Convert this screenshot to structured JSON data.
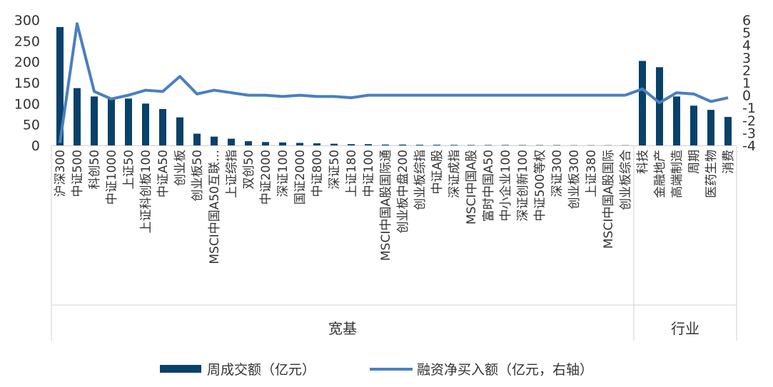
{
  "chart_data": {
    "type": "bar",
    "title": "",
    "categories": [
      "沪深300",
      "中证500",
      "科创50",
      "中证1000",
      "上证50",
      "上证科创板100",
      "中证A50",
      "创业板",
      "创业板50",
      "MSCI中国A50互联…",
      "上证综指",
      "双创50",
      "中证2000",
      "深证100",
      "国证2000",
      "中证800",
      "深证50",
      "上证180",
      "中证100",
      "MSCI中国A股国际通",
      "创业板中盘200",
      "创业板综指",
      "中证A股",
      "深证成指",
      "MSCI中国A股",
      "富时中国A50",
      "中小企业100",
      "深证创新100",
      "中证500等权",
      "深证300",
      "创业板300",
      "上证380",
      "MSCI中国A股国际",
      "创业板综合",
      "科技",
      "金融地产",
      "高端制造",
      "周期",
      "医药生物",
      "消费"
    ],
    "groups": [
      {
        "label": "宽基",
        "count": 34
      },
      {
        "label": "行业",
        "count": 6
      }
    ],
    "series": [
      {
        "name": "周成交额（亿元）",
        "type": "bar",
        "axis": "left",
        "color": "#08416a",
        "values": [
          283,
          137,
          117,
          112,
          112,
          100,
          87,
          67,
          28,
          21,
          16,
          10,
          8,
          7,
          6,
          5,
          4,
          3,
          3,
          2,
          2,
          1.5,
          1.5,
          1.2,
          1,
          1,
          1,
          0.8,
          0.8,
          0.8,
          0.5,
          0.5,
          0.5,
          0.5,
          202,
          187,
          117,
          95,
          85,
          68
        ]
      },
      {
        "name": "融资净买入额（亿元，右轴）",
        "type": "line",
        "axis": "right",
        "color": "#4a7fc0",
        "values": [
          -3.8,
          5.7,
          0.3,
          -0.3,
          0,
          0.4,
          0.3,
          1.5,
          0.1,
          0.4,
          0.2,
          0,
          0,
          -0.1,
          0,
          -0.1,
          -0.1,
          -0.2,
          0,
          0,
          0,
          0,
          0,
          0,
          0,
          0,
          0,
          0,
          0,
          0,
          0,
          0,
          0,
          0,
          0.5,
          -0.6,
          0.2,
          0.1,
          -0.5,
          -0.2
        ]
      }
    ],
    "y_left": {
      "min": 0,
      "max": 300,
      "ticks": [
        0,
        50,
        100,
        150,
        200,
        250,
        300
      ]
    },
    "y_right": {
      "min": -4,
      "max": 6,
      "ticks": [
        -4,
        -3,
        -2,
        -1,
        0,
        1,
        2,
        3,
        4,
        5,
        6
      ]
    },
    "grid": false,
    "legend_position": "bottom"
  }
}
